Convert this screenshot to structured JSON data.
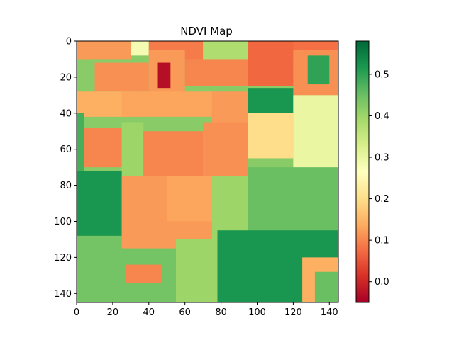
{
  "chart_data": {
    "type": "heatmap",
    "title": "NDVI Map",
    "xlabel": "",
    "ylabel": "",
    "grid": false,
    "x_range": [
      0,
      145
    ],
    "y_range": [
      0,
      145
    ],
    "x_ticks": [
      0,
      20,
      40,
      60,
      80,
      100,
      120,
      140
    ],
    "y_ticks": [
      0,
      20,
      40,
      60,
      80,
      100,
      120,
      140
    ],
    "colormap": "RdYlGn",
    "colorbar": {
      "range": [
        -0.05,
        0.58
      ],
      "ticks": [
        0.0,
        0.1,
        0.2,
        0.3,
        0.4,
        0.5
      ]
    },
    "colors": [
      "#a50026",
      "#d73027",
      "#f46d43",
      "#fdae61",
      "#fee08b",
      "#ffffbf",
      "#d9ef8b",
      "#a6d96a",
      "#66bd63",
      "#1a9850",
      "#006837"
    ],
    "regions": [
      {
        "x": [
          0,
          145
        ],
        "y": [
          0,
          145
        ],
        "ndvi": 0.42
      },
      {
        "x": [
          0,
          30
        ],
        "y": [
          0,
          10
        ],
        "ndvi": 0.12
      },
      {
        "x": [
          30,
          40
        ],
        "y": [
          0,
          8
        ],
        "ndvi": 0.28
      },
      {
        "x": [
          40,
          70
        ],
        "y": [
          0,
          10
        ],
        "ndvi": 0.09
      },
      {
        "x": [
          70,
          95
        ],
        "y": [
          0,
          10
        ],
        "ndvi": 0.38
      },
      {
        "x": [
          95,
          145
        ],
        "y": [
          0,
          10
        ],
        "ndvi": 0.08
      },
      {
        "x": [
          10,
          40
        ],
        "y": [
          12,
          28
        ],
        "ndvi": 0.11
      },
      {
        "x": [
          40,
          60
        ],
        "y": [
          5,
          30
        ],
        "ndvi": 0.12
      },
      {
        "x": [
          45,
          52
        ],
        "y": [
          12,
          26
        ],
        "ndvi": -0.03
      },
      {
        "x": [
          60,
          95
        ],
        "y": [
          10,
          25
        ],
        "ndvi": 0.1
      },
      {
        "x": [
          95,
          120
        ],
        "y": [
          0,
          25
        ],
        "ndvi": 0.07
      },
      {
        "x": [
          120,
          145
        ],
        "y": [
          5,
          30
        ],
        "ndvi": 0.11
      },
      {
        "x": [
          128,
          140
        ],
        "y": [
          8,
          24
        ],
        "ndvi": 0.5
      },
      {
        "x": [
          95,
          120
        ],
        "y": [
          26,
          40
        ],
        "ndvi": 0.52
      },
      {
        "x": [
          120,
          145
        ],
        "y": [
          30,
          85
        ],
        "ndvi": 0.3
      },
      {
        "x": [
          0,
          30
        ],
        "y": [
          28,
          42
        ],
        "ndvi": 0.14
      },
      {
        "x": [
          25,
          75
        ],
        "y": [
          28,
          42
        ],
        "ndvi": 0.13
      },
      {
        "x": [
          75,
          95
        ],
        "y": [
          28,
          75
        ],
        "ndvi": 0.12
      },
      {
        "x": [
          0,
          4
        ],
        "y": [
          40,
          145
        ],
        "ndvi": 0.48
      },
      {
        "x": [
          4,
          25
        ],
        "y": [
          48,
          70
        ],
        "ndvi": 0.1
      },
      {
        "x": [
          25,
          37
        ],
        "y": [
          45,
          80
        ],
        "ndvi": 0.4
      },
      {
        "x": [
          37,
          70
        ],
        "y": [
          50,
          75
        ],
        "ndvi": 0.1
      },
      {
        "x": [
          70,
          95
        ],
        "y": [
          45,
          80
        ],
        "ndvi": 0.11
      },
      {
        "x": [
          95,
          120
        ],
        "y": [
          40,
          65
        ],
        "ndvi": 0.2
      },
      {
        "x": [
          0,
          25
        ],
        "y": [
          72,
          110
        ],
        "ndvi": 0.52
      },
      {
        "x": [
          25,
          75
        ],
        "y": [
          75,
          115
        ],
        "ndvi": 0.12
      },
      {
        "x": [
          50,
          75
        ],
        "y": [
          75,
          100
        ],
        "ndvi": 0.13
      },
      {
        "x": [
          75,
          95
        ],
        "y": [
          75,
          110
        ],
        "ndvi": 0.4
      },
      {
        "x": [
          95,
          145
        ],
        "y": [
          70,
          110
        ],
        "ndvi": 0.45
      },
      {
        "x": [
          0,
          25
        ],
        "y": [
          108,
          145
        ],
        "ndvi": 0.44
      },
      {
        "x": [
          25,
          55
        ],
        "y": [
          115,
          145
        ],
        "ndvi": 0.44
      },
      {
        "x": [
          27,
          47
        ],
        "y": [
          124,
          134
        ],
        "ndvi": 0.1
      },
      {
        "x": [
          55,
          80
        ],
        "y": [
          110,
          145
        ],
        "ndvi": 0.4
      },
      {
        "x": [
          78,
          145
        ],
        "y": [
          105,
          145
        ],
        "ndvi": 0.52
      },
      {
        "x": [
          125,
          145
        ],
        "y": [
          120,
          145
        ],
        "ndvi": 0.14
      },
      {
        "x": [
          132,
          145
        ],
        "y": [
          128,
          145
        ],
        "ndvi": 0.45
      }
    ]
  }
}
